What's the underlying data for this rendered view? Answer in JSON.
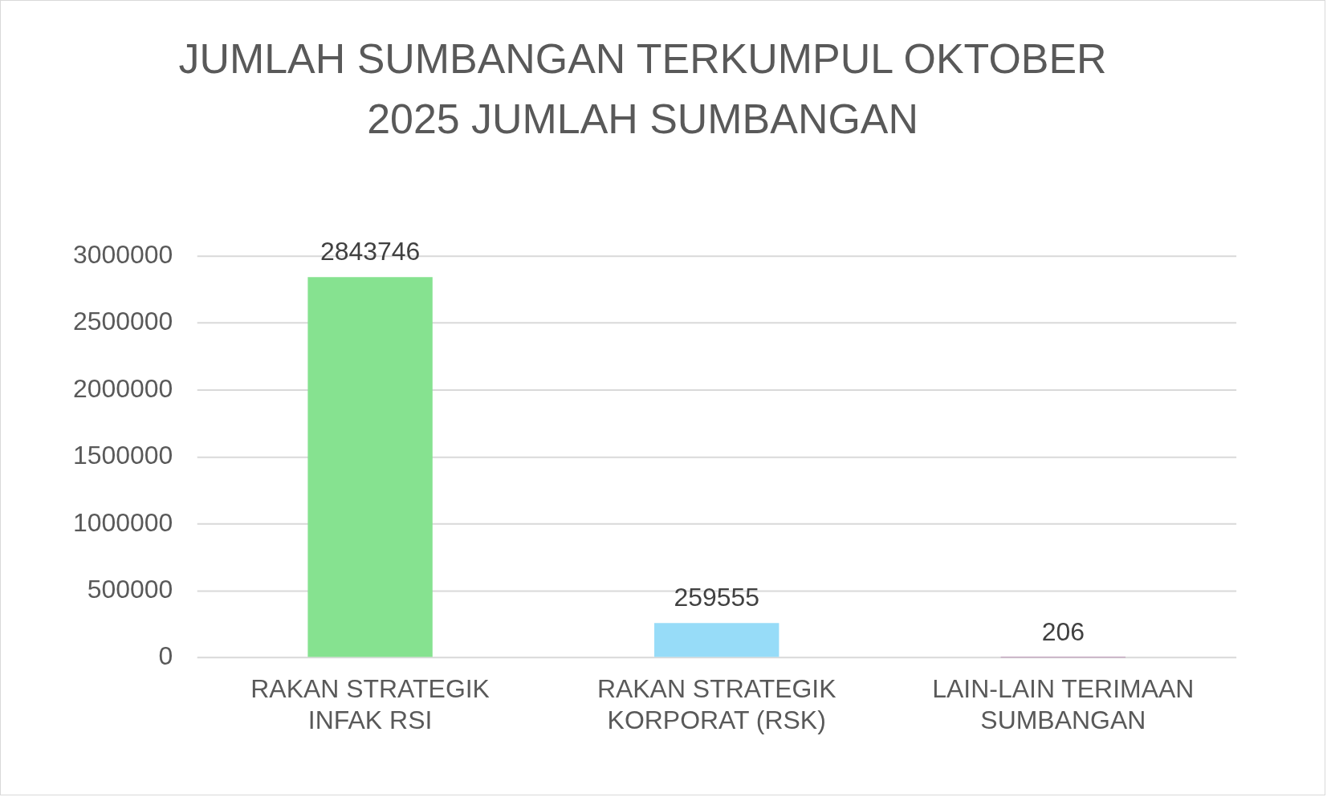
{
  "chart_data": {
    "type": "bar",
    "title": "JUMLAH SUMBANGAN TERKUMPUL OKTOBER 2025 JUMLAH SUMBANGAN",
    "categories": [
      "RAKAN STRATEGIK INFAK RSI",
      "RAKAN STRATEGIK KORPORAT (RSK)",
      "LAIN-LAIN TERIMAAN SUMBANGAN"
    ],
    "values": [
      2843746,
      259555,
      206
    ],
    "colors": [
      "#86e290",
      "#97dcf8",
      "#ae78a8"
    ],
    "ylim": [
      0,
      3000000
    ],
    "yticks": [
      0,
      500000,
      1000000,
      1500000,
      2000000,
      2500000,
      3000000
    ],
    "grid": "y",
    "data_labels": true,
    "legend": false
  }
}
